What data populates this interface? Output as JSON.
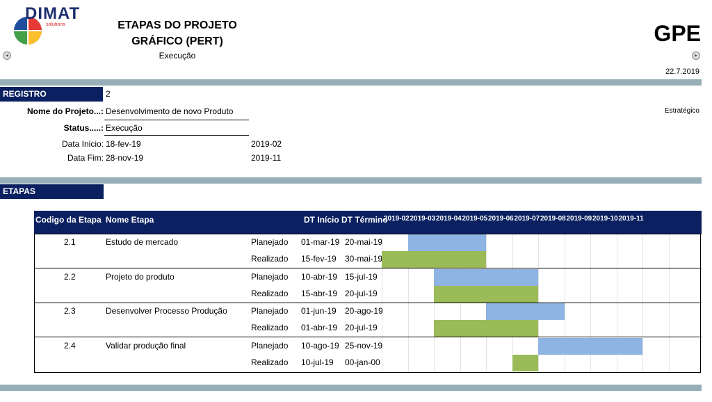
{
  "header": {
    "logo_text": "DIMAT",
    "logo_sub": "solutions",
    "title_line1": "ETAPAS DO PROJETO",
    "title_line2": "GRÁFICO (PERT)",
    "subtitle": "Execução",
    "code": "GPE",
    "date": "22.7.2019",
    "prev_icon": "◂",
    "next_icon": "▸"
  },
  "registro": {
    "label": "REGISTRO",
    "value": "2",
    "project_label": "Nome do Projeto...:",
    "project_value": "Desenvolvimento de novo Produto",
    "category": "Estratégico",
    "status_label": "Status.....:",
    "status_value": "Execução",
    "start_label": "Data Inicio:",
    "start_value": "18-fev-19",
    "start_month": "2019-02",
    "end_label": "Data Fim:",
    "end_value": "28-nov-19",
    "end_month": "2019-11"
  },
  "etapas": {
    "label": "ETAPAS",
    "columns": {
      "code": "Codigo da Etapa",
      "name": "Nome Etapa",
      "start": "DT Início",
      "end": "DT  Término"
    },
    "months": [
      "2019-02",
      "2019-03",
      "2019-04",
      "2019-05",
      "2019-06",
      "2019-07",
      "2019-08",
      "2019-09",
      "2019-10",
      "2019-11"
    ],
    "planned_label": "Planejado",
    "actual_label": "Realizado",
    "colors": {
      "planned": "#8eb4e3",
      "actual": "#9bbb59",
      "header": "#0b2060"
    },
    "rows": [
      {
        "code": "2.1",
        "name": "Estudo de mercado",
        "planned": {
          "start": "01-mar-19",
          "end": "20-mai-19",
          "months": [
            "2019-03",
            "2019-05"
          ]
        },
        "actual": {
          "start": "15-fev-19",
          "end": "30-mai-19",
          "months": [
            "2019-02",
            "2019-05"
          ]
        }
      },
      {
        "code": "2.2",
        "name": "Projeto do produto",
        "planned": {
          "start": "10-abr-19",
          "end": "15-jul-19",
          "months": [
            "2019-04",
            "2019-07"
          ]
        },
        "actual": {
          "start": "15-abr-19",
          "end": "20-jul-19",
          "months": [
            "2019-04",
            "2019-07"
          ]
        }
      },
      {
        "code": "2.3",
        "name": "Desenvolver Processo Produção",
        "planned": {
          "start": "01-jun-19",
          "end": "20-ago-19",
          "months": [
            "2019-06",
            "2019-08"
          ]
        },
        "actual": {
          "start": "01-abr-19",
          "end": "20-jul-19",
          "months": [
            "2019-04",
            "2019-07"
          ]
        }
      },
      {
        "code": "2.4",
        "name": "Validar produção final",
        "planned": {
          "start": "10-ago-19",
          "end": "25-nov-19",
          "months": [
            "2019-08",
            "2019-11"
          ]
        },
        "actual": {
          "start": "10-jul-19",
          "end": "00-jan-00",
          "months": [
            "2019-07",
            "2019-07"
          ]
        }
      }
    ]
  }
}
